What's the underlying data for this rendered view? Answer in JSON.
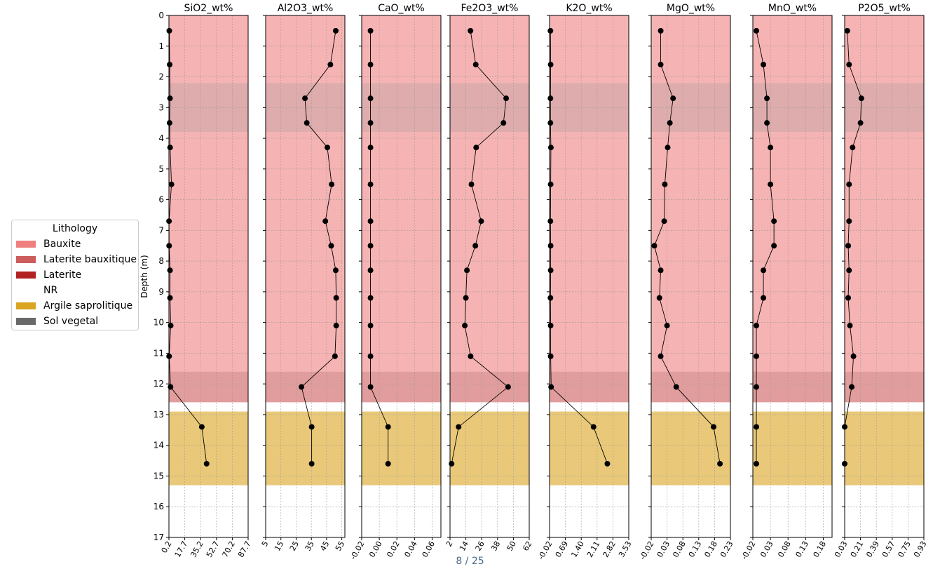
{
  "page_indicator": "8 / 25",
  "legend": {
    "title": "Lithology",
    "items": [
      {
        "label": "Bauxite",
        "color": "#f08080"
      },
      {
        "label": "Laterite bauxitique",
        "color": "#cd5c5c"
      },
      {
        "label": "Laterite",
        "color": "#b22222"
      },
      {
        "label": "NR",
        "color": "#ffffff"
      },
      {
        "label": "Argile saprolitique",
        "color": "#daa520"
      },
      {
        "label": "Sol vegetal",
        "color": "#696969"
      }
    ]
  },
  "chart_data": {
    "type": "line",
    "ylabel": "Depth (m)",
    "ylim": [
      17,
      0
    ],
    "yticks": [
      "0",
      "1",
      "2",
      "3",
      "4",
      "5",
      "6",
      "7",
      "8",
      "9",
      "10",
      "11",
      "12",
      "13",
      "14",
      "15",
      "16",
      "17"
    ],
    "grid": true,
    "legend_position": "left",
    "depth": [
      0.5,
      1.6,
      2.7,
      3.5,
      4.3,
      5.5,
      6.7,
      7.5,
      8.3,
      9.2,
      10.1,
      11.1,
      12.1,
      13.4,
      14.6
    ],
    "intervals": [
      {
        "top": 0,
        "bottom": 2.2,
        "lithology": "Bauxite",
        "color": "#f08080"
      },
      {
        "top": 2.2,
        "bottom": 3.8,
        "lithology": "Bauxite",
        "color": "#f08080",
        "overlay": "#999999"
      },
      {
        "top": 3.8,
        "bottom": 11.6,
        "lithology": "Bauxite",
        "color": "#f08080"
      },
      {
        "top": 11.6,
        "bottom": 12.6,
        "lithology": "Laterite bauxitique",
        "color": "#cd5c5c"
      },
      {
        "top": 12.6,
        "bottom": 12.9,
        "lithology": "NR",
        "color": "#ffffff"
      },
      {
        "top": 12.9,
        "bottom": 15.3,
        "lithology": "Argile saprolitique",
        "color": "#daa520"
      }
    ],
    "tracks": [
      {
        "name": "SiO2_wt%",
        "xlim": [
          0.2,
          87.7
        ],
        "xticks": [
          "0.2",
          "17.7",
          "35.2",
          "52.7",
          "70.2",
          "87.7"
        ],
        "values": [
          0.6,
          1.0,
          1.4,
          0.9,
          1.5,
          3.0,
          0.3,
          0.4,
          1.4,
          1.4,
          2.2,
          0.4,
          2.0,
          36.5,
          41.8
        ]
      },
      {
        "name": "Al2O3_wt%",
        "xlim": [
          5,
          57
        ],
        "xticks": [
          "5",
          "15",
          "25",
          "35",
          "45",
          "55"
        ],
        "values": [
          51,
          47.5,
          30.8,
          32,
          45.5,
          48.3,
          44.2,
          48,
          51,
          51.3,
          51.3,
          50.5,
          28.5,
          35.2,
          35.2
        ]
      },
      {
        "name": "CaO_wt%",
        "xlim": [
          -0.02,
          0.07
        ],
        "xticks": [
          "-0.02",
          "0.00",
          "0.02",
          "0.04",
          "0.06"
        ],
        "values": [
          -0.01,
          -0.01,
          -0.01,
          -0.01,
          -0.01,
          -0.01,
          -0.01,
          -0.01,
          -0.01,
          -0.01,
          -0.01,
          -0.01,
          -0.01,
          0.01,
          0.01
        ]
      },
      {
        "name": "Fe2O3_wt%",
        "xlim": [
          2,
          62
        ],
        "xticks": [
          "2",
          "14",
          "26",
          "38",
          "50",
          "62"
        ],
        "values": [
          17.5,
          21.5,
          44.5,
          42.5,
          21.8,
          18.2,
          25.6,
          21.2,
          14.8,
          14,
          13.2,
          17.6,
          46,
          8.5,
          3.2
        ]
      },
      {
        "name": "K2O_wt%",
        "xlim": [
          -0.02,
          3.53
        ],
        "xticks": [
          "-0.02",
          "0.69",
          "1.40",
          "2.11",
          "2.82",
          "3.53"
        ],
        "values": [
          0.02,
          0.03,
          0.02,
          0.02,
          0.04,
          0.03,
          0.02,
          0.03,
          0.03,
          0.02,
          0.03,
          0.03,
          0.05,
          1.95,
          2.57
        ]
      },
      {
        "name": "MgO_wt%",
        "xlim": [
          -0.02,
          0.23
        ],
        "xticks": [
          "-0.02",
          "0.03",
          "0.08",
          "0.13",
          "0.18",
          "0.23"
        ],
        "values": [
          0.01,
          0.01,
          0.049,
          0.039,
          0.032,
          0.023,
          0.021,
          -0.01,
          0.01,
          0.006,
          0.03,
          0.01,
          0.059,
          0.177,
          0.197
        ]
      },
      {
        "name": "MnO_wt%",
        "xlim": [
          -0.02,
          0.205
        ],
        "xticks": [
          "-0.02",
          "0.03",
          "0.08",
          "0.13",
          "0.18"
        ],
        "values": [
          -0.01,
          0.01,
          0.02,
          0.02,
          0.03,
          0.03,
          0.04,
          0.04,
          0.01,
          0.01,
          -0.01,
          -0.01,
          -0.01,
          -0.01,
          -0.01
        ]
      },
      {
        "name": "P2O5_wt%",
        "xlim": [
          0.03,
          0.93
        ],
        "xticks": [
          "0.03",
          "0.21",
          "0.39",
          "0.57",
          "0.75",
          "0.93"
        ],
        "values": [
          0.06,
          0.08,
          0.22,
          0.21,
          0.12,
          0.08,
          0.08,
          0.07,
          0.08,
          0.07,
          0.09,
          0.13,
          0.11,
          0.03,
          0.03
        ]
      }
    ]
  }
}
